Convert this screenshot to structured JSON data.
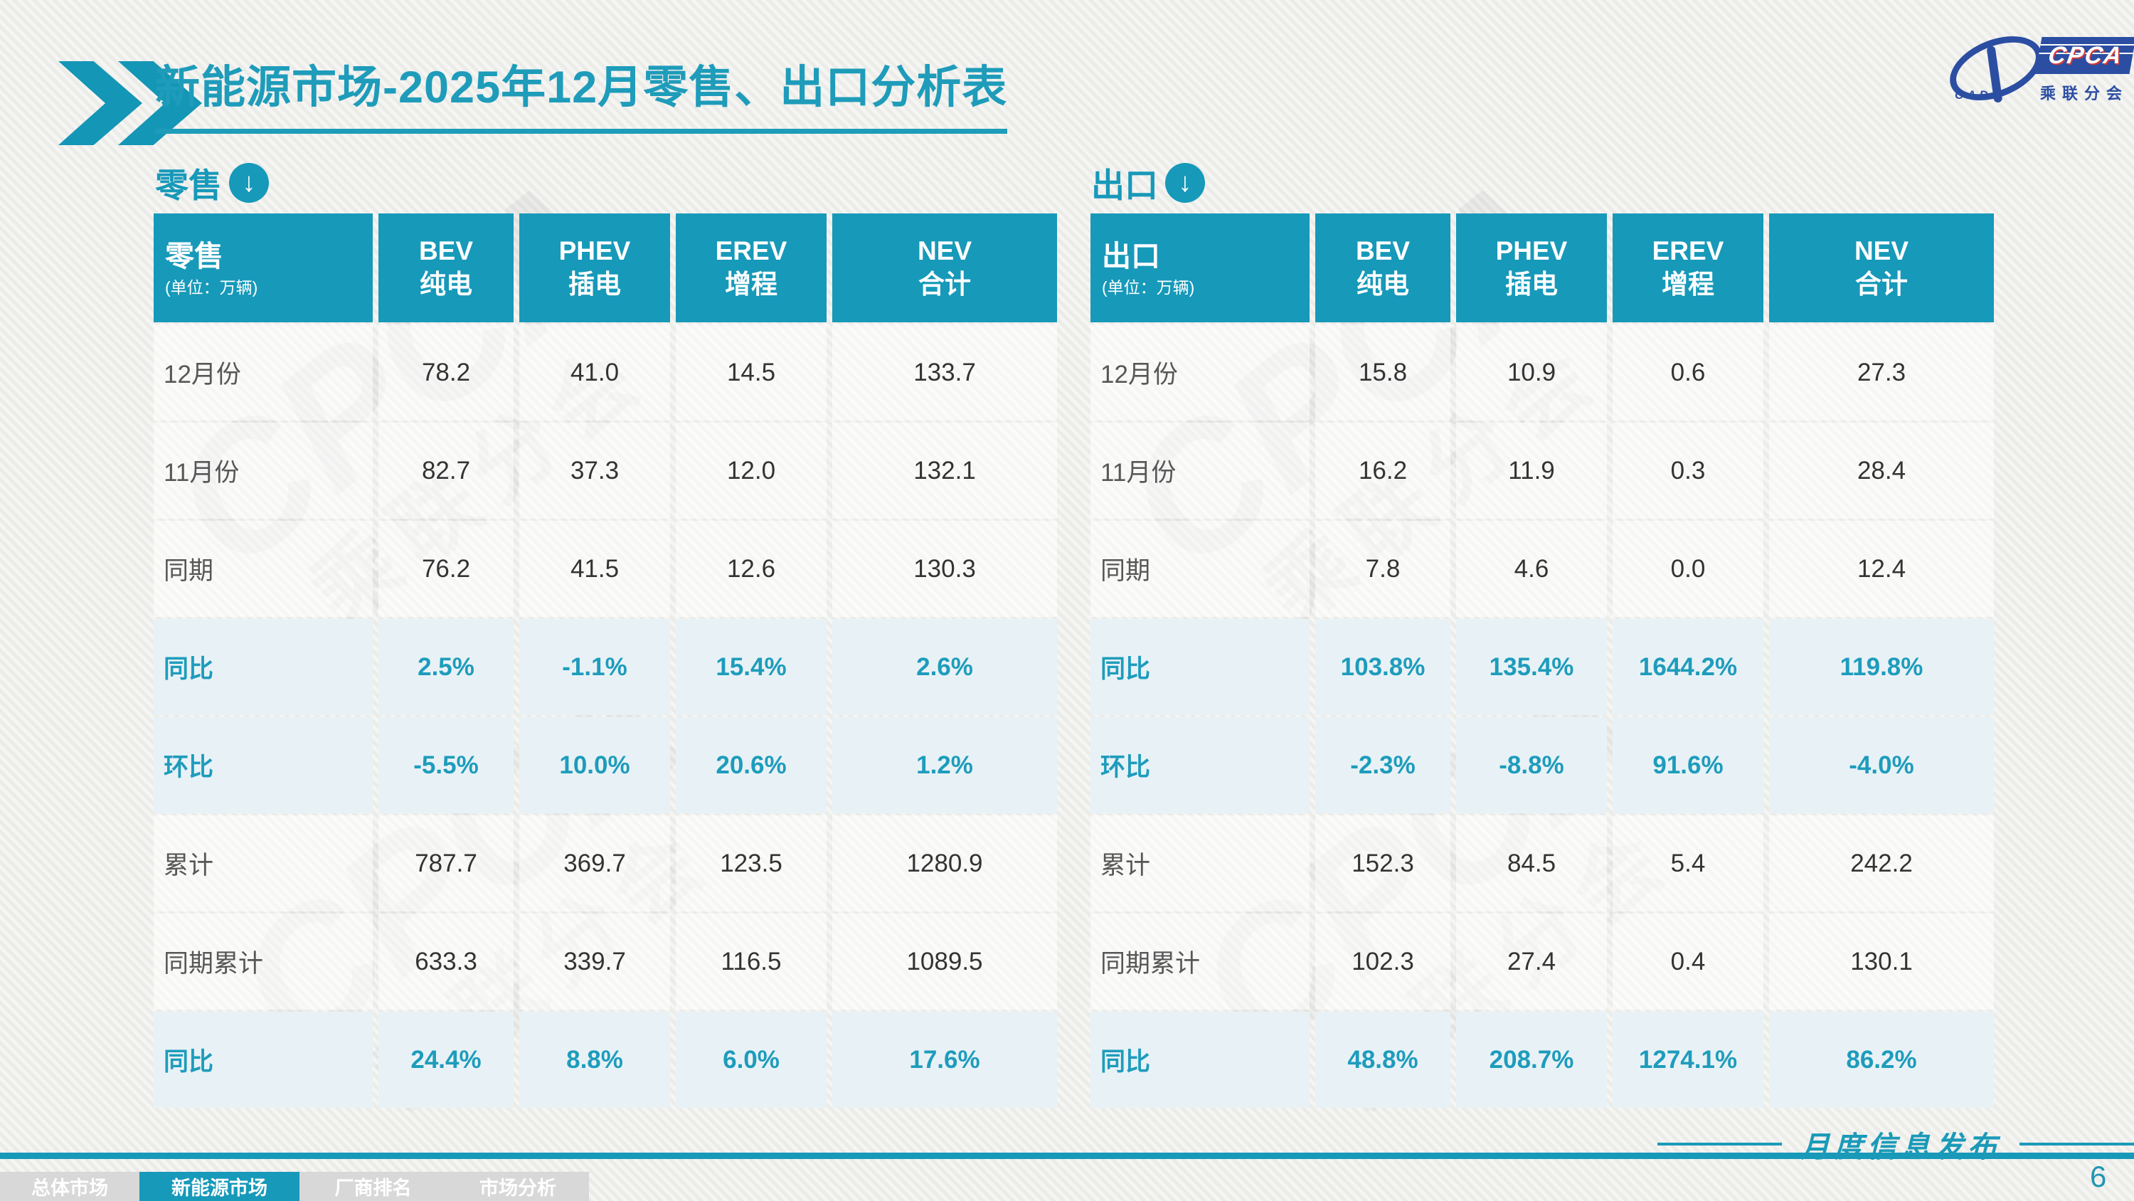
{
  "title": {
    "text": "新能源市场-2025年12月零售、出口分析表"
  },
  "logo": {
    "cpca": "CPCA",
    "cada": "CADA",
    "subtitle": "乘联分会"
  },
  "colors": {
    "accent_teal": "#1799B9",
    "title_teal": "#1E9CBA",
    "accent_row_bg": "#E8F2F6",
    "logo_blue": "#2B4EA2",
    "tabbar_grey": "#D8D8D8"
  },
  "section_icons": {
    "down_arrow": "↓"
  },
  "tables": [
    {
      "section_label": "零售",
      "header": {
        "label": "零售",
        "unit": "(单位：万辆)",
        "columns": [
          {
            "l1": "BEV",
            "l2": "纯电"
          },
          {
            "l1": "PHEV",
            "l2": "插电"
          },
          {
            "l1": "EREV",
            "l2": "增程"
          },
          {
            "l1": "NEV",
            "l2": "合计"
          }
        ]
      },
      "rows": [
        {
          "label": "12月份",
          "values": [
            "78.2",
            "41.0",
            "14.5",
            "133.7"
          ],
          "accent": false
        },
        {
          "label": "11月份",
          "values": [
            "82.7",
            "37.3",
            "12.0",
            "132.1"
          ],
          "accent": false
        },
        {
          "label": "同期",
          "values": [
            "76.2",
            "41.5",
            "12.6",
            "130.3"
          ],
          "accent": false
        },
        {
          "label": "同比",
          "values": [
            "2.5%",
            "-1.1%",
            "15.4%",
            "2.6%"
          ],
          "accent": true
        },
        {
          "label": "环比",
          "values": [
            "-5.5%",
            "10.0%",
            "20.6%",
            "1.2%"
          ],
          "accent": true
        },
        {
          "label": "累计",
          "values": [
            "787.7",
            "369.7",
            "123.5",
            "1280.9"
          ],
          "accent": false
        },
        {
          "label": "同期累计",
          "values": [
            "633.3",
            "339.7",
            "116.5",
            "1089.5"
          ],
          "accent": false
        },
        {
          "label": "同比",
          "values": [
            "24.4%",
            "8.8%",
            "6.0%",
            "17.6%"
          ],
          "accent": true
        }
      ]
    },
    {
      "section_label": "出口",
      "header": {
        "label": "出口",
        "unit": "(单位：万辆)",
        "columns": [
          {
            "l1": "BEV",
            "l2": "纯电"
          },
          {
            "l1": "PHEV",
            "l2": "插电"
          },
          {
            "l1": "EREV",
            "l2": "增程"
          },
          {
            "l1": "NEV",
            "l2": "合计"
          }
        ]
      },
      "rows": [
        {
          "label": "12月份",
          "values": [
            "15.8",
            "10.9",
            "0.6",
            "27.3"
          ],
          "accent": false
        },
        {
          "label": "11月份",
          "values": [
            "16.2",
            "11.9",
            "0.3",
            "28.4"
          ],
          "accent": false
        },
        {
          "label": "同期",
          "values": [
            "7.8",
            "4.6",
            "0.0",
            "12.4"
          ],
          "accent": false
        },
        {
          "label": "同比",
          "values": [
            "103.8%",
            "135.4%",
            "1644.2%",
            "119.8%"
          ],
          "accent": true
        },
        {
          "label": "环比",
          "values": [
            "-2.3%",
            "-8.8%",
            "91.6%",
            "-4.0%"
          ],
          "accent": true
        },
        {
          "label": "累计",
          "values": [
            "152.3",
            "84.5",
            "5.4",
            "242.2"
          ],
          "accent": false
        },
        {
          "label": "同期累计",
          "values": [
            "102.3",
            "27.4",
            "0.4",
            "130.1"
          ],
          "accent": false
        },
        {
          "label": "同比",
          "values": [
            "48.8%",
            "208.7%",
            "1274.1%",
            "86.2%"
          ],
          "accent": true
        }
      ]
    }
  ],
  "footer": {
    "tabs": [
      {
        "label": "总体市场",
        "active": false
      },
      {
        "label": "新能源市场",
        "active": true
      },
      {
        "label": "厂商排名",
        "active": false
      },
      {
        "label": "市场分析",
        "active": false
      }
    ],
    "publication": "月度信息发布",
    "page": "6"
  }
}
